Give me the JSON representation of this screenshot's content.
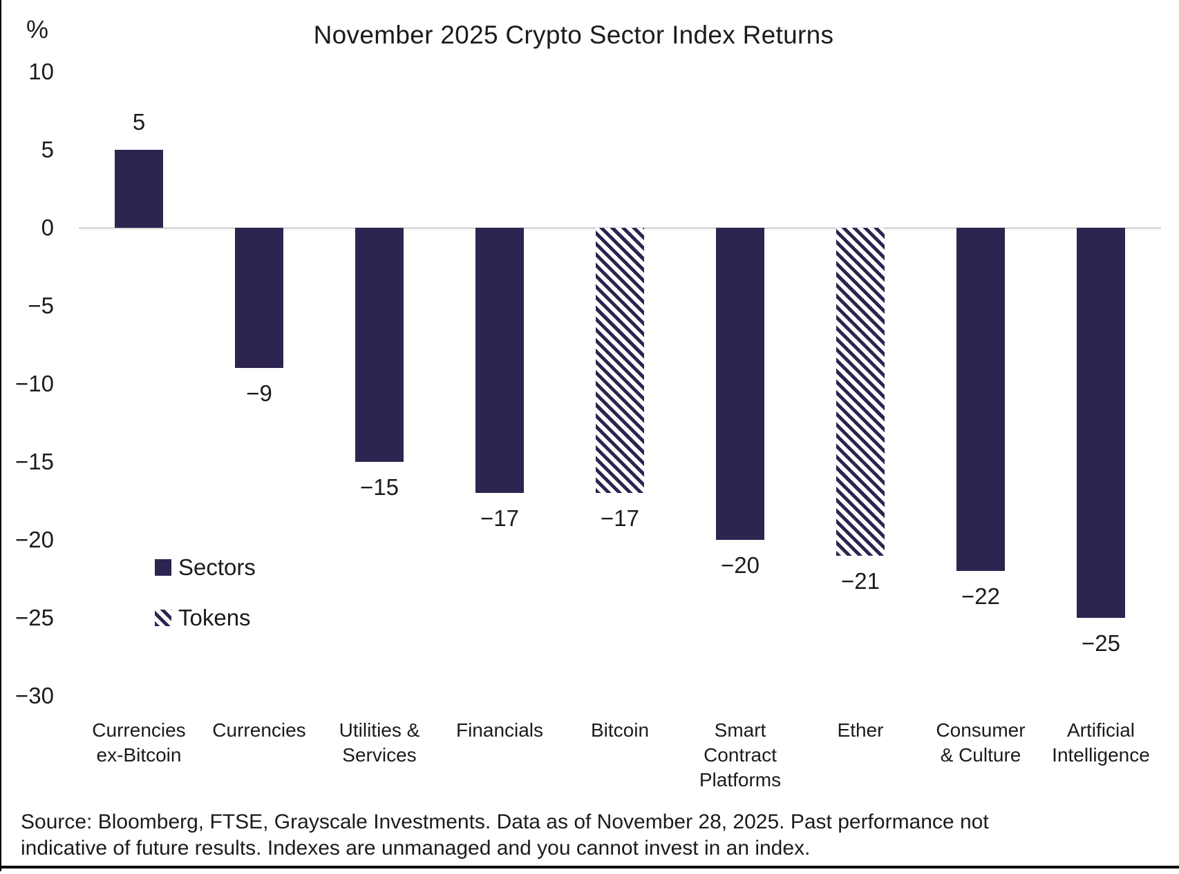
{
  "chart_data": {
    "type": "bar",
    "title": "November 2025 Crypto Sector Index Returns",
    "y_axis_unit": "%",
    "ylim": [
      10,
      -30
    ],
    "y_ticks": [
      10,
      5,
      0,
      -5,
      -10,
      -15,
      -20,
      -25,
      -30
    ],
    "grid": "zero-line-only",
    "legend_position": "inside-left",
    "categories": [
      "Currencies\nex-Bitcoin",
      "Currencies",
      "Utilities &\nServices",
      "Financials",
      "Bitcoin",
      "Smart\nContract\nPlatforms",
      "Ether",
      "Consumer\n& Culture",
      "Artificial\nIntelligence"
    ],
    "values": [
      5,
      -9,
      -15,
      -17,
      -17,
      -20,
      -21,
      -22,
      -25
    ],
    "value_labels": [
      "5",
      "−9",
      "−15",
      "−17",
      "−17",
      "−20",
      "−21",
      "−22",
      "−25"
    ],
    "bar_styles": [
      "solid",
      "solid",
      "solid",
      "solid",
      "hatched",
      "solid",
      "hatched",
      "solid",
      "solid"
    ],
    "legend": [
      {
        "label": "Sectors",
        "style": "solid"
      },
      {
        "label": "Tokens",
        "style": "hatched"
      }
    ],
    "colors": {
      "bar": "#2E2450",
      "zero_line": "#DADADA",
      "text": "#1B1B1B"
    }
  },
  "source_note": "Source: Bloomberg, FTSE, Grayscale Investments. Data as of November 28, 2025. Past performance not\nindicative of future results. Indexes are unmanaged and you cannot invest in an index."
}
